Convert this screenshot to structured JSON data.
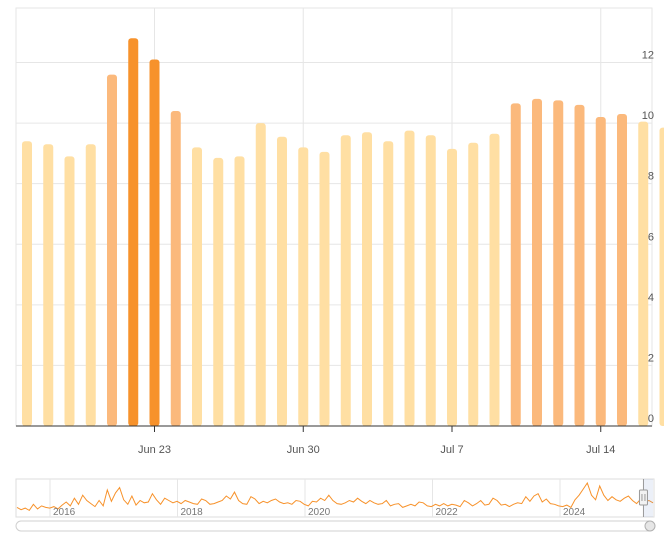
{
  "chart_data": {
    "type": "bar",
    "x": [
      "Jun 17",
      "Jun 18",
      "Jun 19",
      "Jun 20",
      "Jun 21",
      "Jun 22",
      "Jun 23",
      "Jun 24",
      "Jun 25",
      "Jun 26",
      "Jun 27",
      "Jun 28",
      "Jun 29",
      "Jun 30",
      "Jul 1",
      "Jul 2",
      "Jul 3",
      "Jul 4",
      "Jul 5",
      "Jul 6",
      "Jul 7",
      "Jul 8",
      "Jul 9",
      "Jul 10",
      "Jul 11",
      "Jul 12",
      "Jul 13",
      "Jul 14",
      "Jul 15",
      "Jul 16",
      "Jul 17"
    ],
    "values": [
      9.4,
      9.3,
      8.9,
      9.3,
      11.6,
      12.8,
      12.1,
      10.4,
      9.2,
      8.85,
      8.9,
      10.0,
      9.55,
      9.2,
      9.05,
      9.6,
      9.7,
      9.4,
      9.75,
      9.6,
      9.15,
      9.35,
      9.65,
      10.65,
      10.8,
      10.75,
      10.6,
      10.2,
      10.3,
      10.05,
      9.85
    ],
    "x_ticks": [
      "Jun 23",
      "Jun 30",
      "Jul 7",
      "Jul 14"
    ],
    "y_ticks": [
      0,
      2,
      4,
      6,
      8,
      10,
      12
    ],
    "ylim": [
      0,
      13.8
    ],
    "y_axis_position": "right",
    "grid": true,
    "color_scale": [
      "#FFDFA3",
      "#FBB97C",
      "#F7922B"
    ],
    "title": "",
    "xlabel": "",
    "ylabel": ""
  },
  "navigator": {
    "year_labels": [
      "2016",
      "2018",
      "2020",
      "2022",
      "2024"
    ],
    "series": [
      1.0,
      0.7,
      0.9,
      0.6,
      1.4,
      0.8,
      1.2,
      1.0,
      0.9,
      1.1,
      0.8,
      1.3,
      1.7,
      1.2,
      2.2,
      1.4,
      2.6,
      1.9,
      1.5,
      1.1,
      1.9,
      1.2,
      3.3,
      1.8,
      2.9,
      3.6,
      2.0,
      1.4,
      2.5,
      1.3,
      1.9,
      1.6,
      1.7,
      2.8,
      2.0,
      1.4,
      2.2,
      1.9,
      1.6,
      1.8,
      1.5,
      1.9,
      1.7,
      1.5,
      1.4,
      2.1,
      1.9,
      1.4,
      1.5,
      1.7,
      1.9,
      2.5,
      2.1,
      3.0,
      1.9,
      1.5,
      1.4,
      2.4,
      2.1,
      1.5,
      1.8,
      1.6,
      1.9,
      2.1,
      1.7,
      1.5,
      1.6,
      1.4,
      1.9,
      1.8,
      1.4,
      1.2,
      1.8,
      1.7,
      2.2,
      1.9,
      2.6,
      1.9,
      1.5,
      1.4,
      1.6,
      1.9,
      1.7,
      2.2,
      1.8,
      1.5,
      1.9,
      1.6,
      1.4,
      1.5,
      1.9,
      1.2,
      1.4,
      1.5,
      1.0,
      1.2,
      1.4,
      1.2,
      1.7,
      1.6,
      1.2,
      1.1,
      1.4,
      1.2,
      1.5,
      1.2,
      1.4,
      1.3,
      1.1,
      1.9,
      1.6,
      1.2,
      1.5,
      1.9,
      1.3,
      1.4,
      2.2,
      1.9,
      1.3,
      1.4,
      1.1,
      1.4,
      1.6,
      1.5,
      2.4,
      1.8,
      2.5,
      2.8,
      1.7,
      2.1,
      1.5,
      1.4,
      1.2,
      1.1,
      1.3,
      1.0,
      2.0,
      2.6,
      3.4,
      4.2,
      2.6,
      2.0,
      3.8,
      2.6,
      1.9,
      2.4,
      2.0,
      1.8,
      2.2,
      2.5,
      1.9,
      1.5,
      2.1,
      1.7,
      1.9,
      1.6
    ],
    "range_start": 0.985,
    "range_end": 1.0
  }
}
